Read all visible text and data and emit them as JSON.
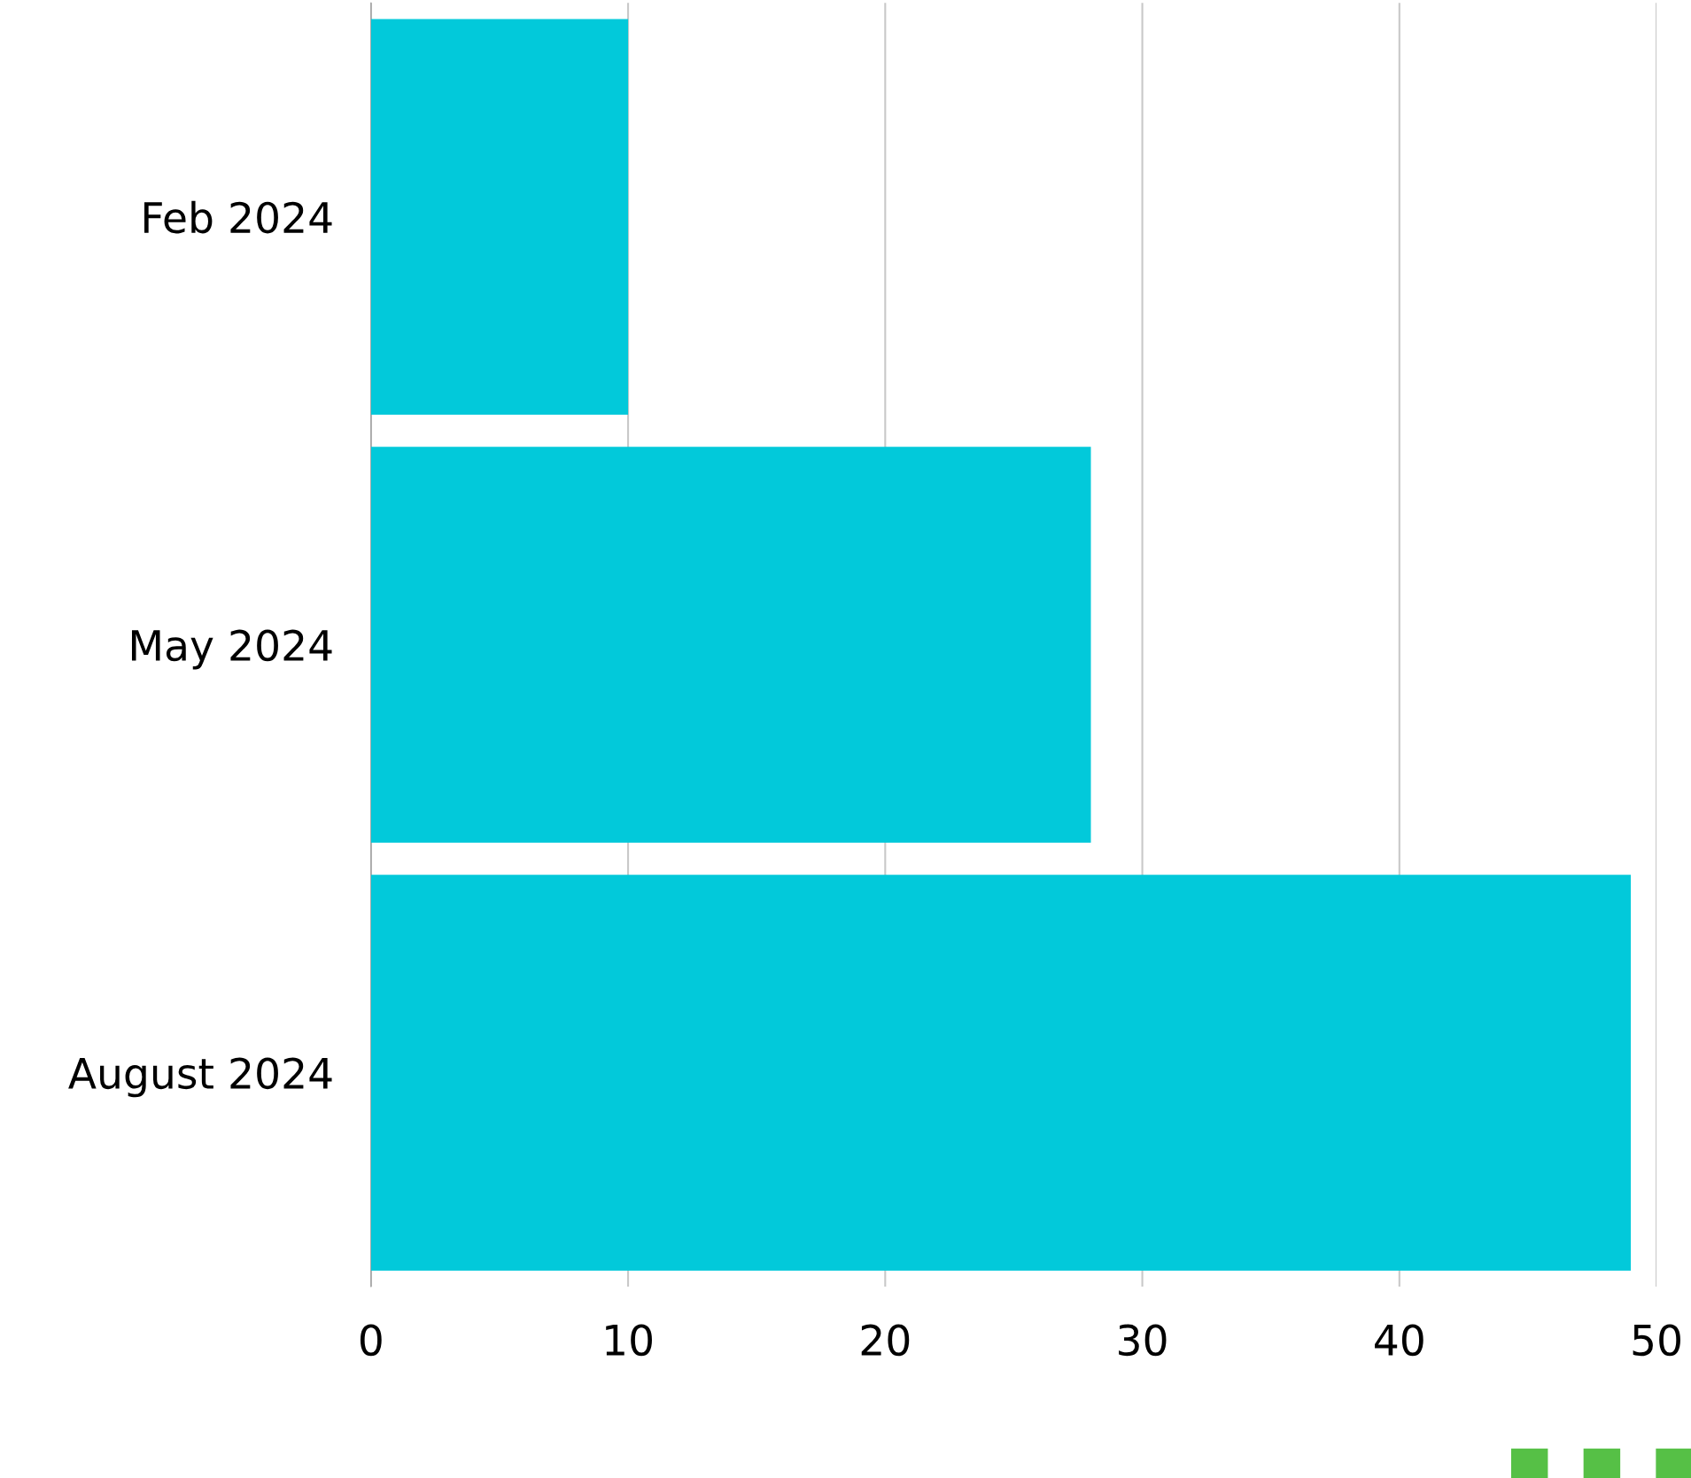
{
  "chart_data": {
    "type": "bar",
    "orientation": "horizontal",
    "categories": [
      "Feb 2024",
      "May 2024",
      "August 2024"
    ],
    "values": [
      10,
      28,
      49
    ],
    "color": "#02c9da",
    "xlim": [
      0,
      50
    ],
    "xticks": [
      0,
      10,
      20,
      30,
      40,
      50
    ],
    "grid": "x",
    "legend": false
  }
}
